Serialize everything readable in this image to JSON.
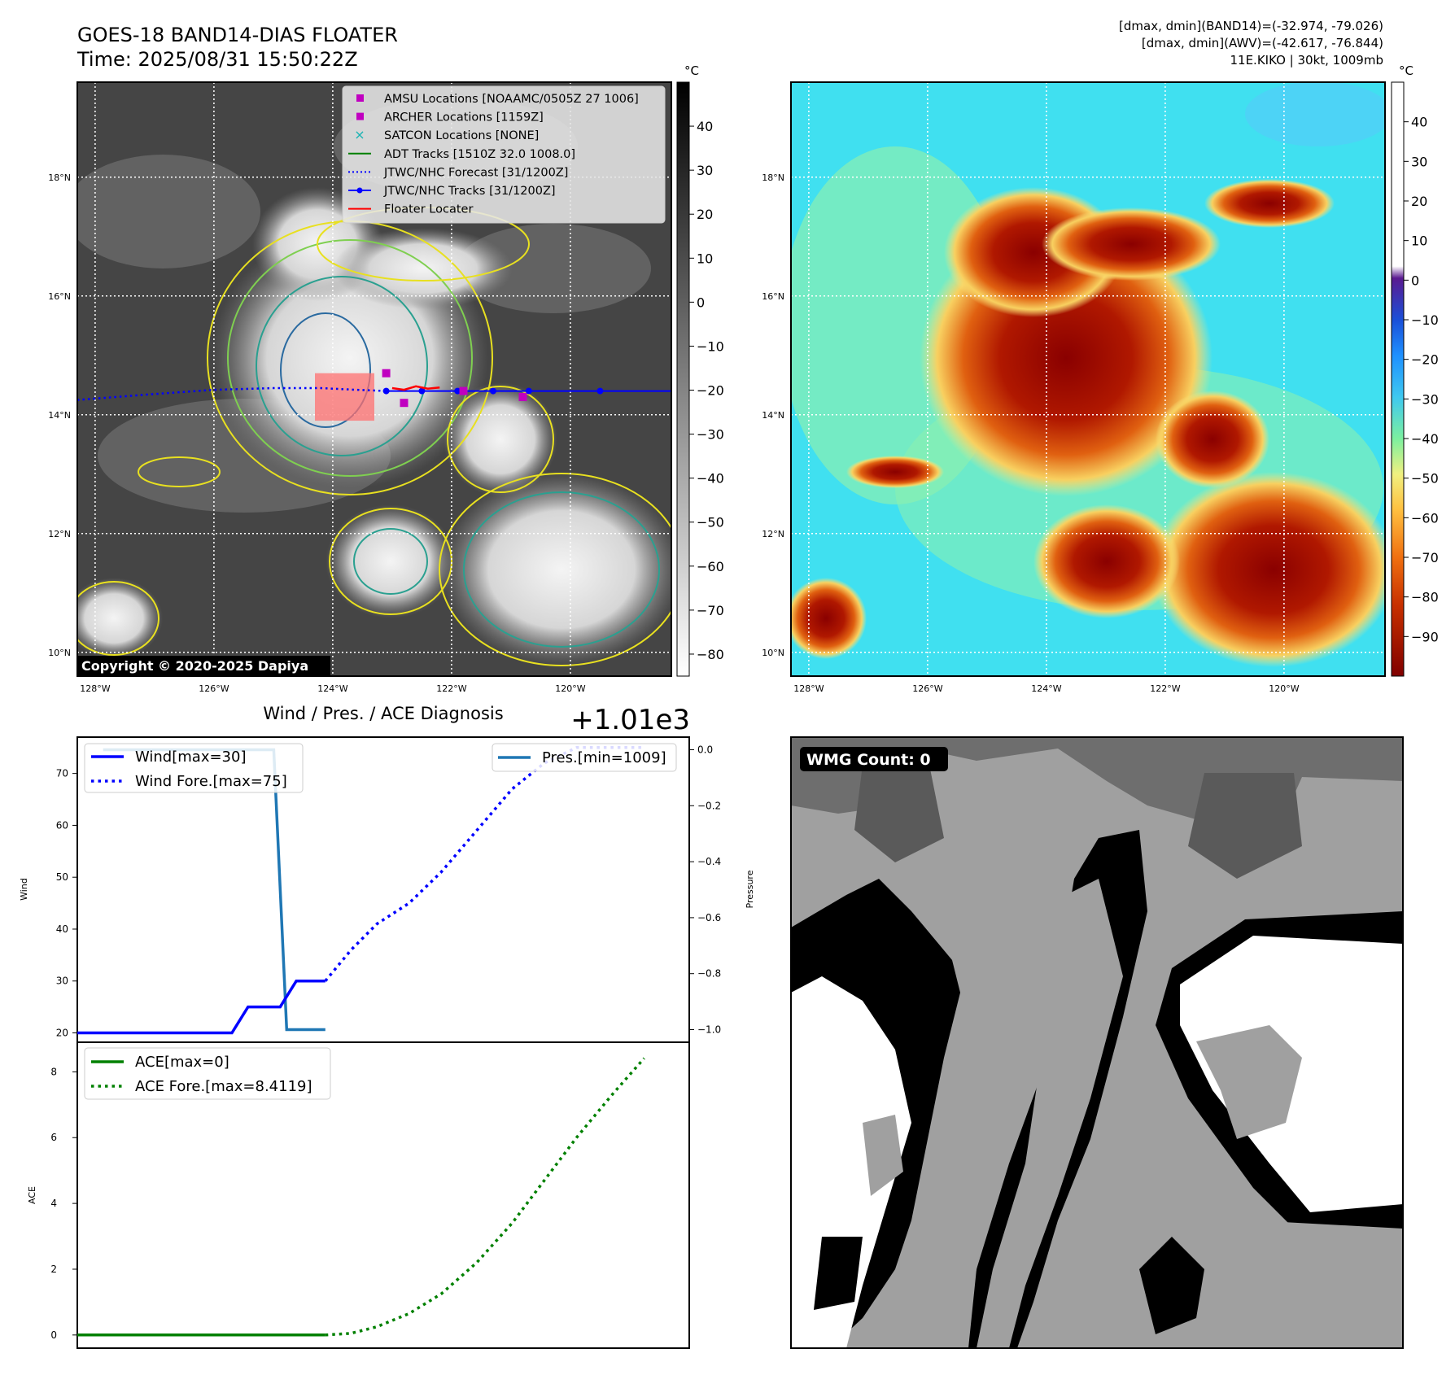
{
  "header": {
    "title_line1": "GOES-18 BAND14-DIAS FLOATER",
    "title_line2": "Time: 2025/08/31 15:50:22Z",
    "info_line1": "[dmax, dmin](BAND14)=(-32.974, -79.026)",
    "info_line2": "[dmax, dmin](AWV)=(-42.617, -76.844)",
    "info_line3": "11E.KIKO | 30kt, 1009mb"
  },
  "copyright": "Copyright © 2020-2025 Dapiya",
  "map_axes": {
    "lon_ticks": [
      -128,
      -126,
      -124,
      -122,
      -120
    ],
    "lon_labels": [
      "128°W",
      "126°W",
      "124°W",
      "122°W",
      "120°W"
    ],
    "lat_ticks": [
      10,
      12,
      14,
      16,
      18
    ],
    "lat_labels": [
      "10°N",
      "12°N",
      "14°N",
      "16°N",
      "18°N"
    ],
    "lon_range": [
      -128.3,
      -118.3
    ],
    "lat_range": [
      9.6,
      19.6
    ]
  },
  "legend_entries": [
    {
      "label": "AMSU Locations [NOAAMC/0505Z 27 1006]",
      "color": "#c000c0",
      "style": "square"
    },
    {
      "label": "ARCHER Locations [1159Z]",
      "color": "#c000c0",
      "style": "square"
    },
    {
      "label": "SATCON Locations [NONE]",
      "color": "#17b3b3",
      "style": "x"
    },
    {
      "label": "ADT Tracks [1510Z 32.0 1008.0]",
      "color": "#008000",
      "style": "line"
    },
    {
      "label": "JTWC/NHC Forecast [31/1200Z]",
      "color": "#0000ff",
      "style": "dotted"
    },
    {
      "label": "JTWC/NHC Tracks [31/1200Z]",
      "color": "#0000ff",
      "style": "line-marker"
    },
    {
      "label": "Floater Locater",
      "color": "#ff0000",
      "style": "line"
    }
  ],
  "colorbar_gray": {
    "unit": "°C",
    "ticks": [
      40,
      30,
      20,
      10,
      0,
      -10,
      -20,
      -30,
      -40,
      -50,
      -60,
      -70,
      -80
    ],
    "labels": [
      "40",
      "30",
      "20",
      "10",
      "0",
      "−10",
      "−20",
      "−30",
      "−40",
      "−50",
      "−60",
      "−70",
      "−80"
    ],
    "range": [
      -85,
      50
    ]
  },
  "colorbar_color": {
    "unit": "°C",
    "ticks": [
      40,
      30,
      20,
      10,
      0,
      -10,
      -20,
      -30,
      -40,
      -50,
      -60,
      -70,
      -80,
      -90
    ],
    "labels": [
      "40",
      "30",
      "20",
      "10",
      "0",
      "−10",
      "−20",
      "−30",
      "−40",
      "−50",
      "−60",
      "−70",
      "−80",
      "−90"
    ],
    "range": [
      -100,
      50
    ]
  },
  "tracks": {
    "forecast_lon": [
      -128.3,
      -127,
      -126,
      -125,
      -124.2,
      -123.6,
      -123.1
    ],
    "forecast_lat": [
      14.25,
      14.35,
      14.42,
      14.45,
      14.45,
      14.42,
      14.4
    ],
    "history_lon": [
      -118.3,
      -118.9,
      -119.5,
      -120.1,
      -120.7,
      -121.3,
      -121.9,
      -122.5,
      -123.1
    ],
    "history_lat": [
      14.4,
      14.4,
      14.4,
      14.4,
      14.4,
      14.4,
      14.4,
      14.4,
      14.4
    ],
    "history_marker_lon": [
      -119.5,
      -120.7,
      -121.3,
      -121.9,
      -122.5,
      -123.1
    ],
    "floater_lon": [
      -123.0,
      -122.8,
      -122.6,
      -122.4,
      -122.2
    ],
    "floater_lat": [
      14.45,
      14.42,
      14.48,
      14.44,
      14.46
    ],
    "amsu": [
      [
        -123.1,
        14.7
      ],
      [
        -122.8,
        14.2
      ],
      [
        -121.8,
        14.4
      ],
      [
        -120.8,
        14.3
      ]
    ],
    "floater_box": {
      "lon": [
        -124.3,
        -123.3
      ],
      "lat": [
        13.9,
        14.7
      ]
    }
  },
  "chart_data": [
    {
      "type": "line",
      "title": "Wind / Pres. / ACE Diagnosis",
      "offset_text": "+1.01e3",
      "ylabel": "Wind",
      "ylabel_right": "Pressure",
      "x": [
        0,
        1,
        2,
        3,
        4,
        5,
        6,
        7,
        8,
        9,
        10,
        11,
        12,
        13,
        14,
        15,
        16,
        17,
        18
      ],
      "ylim": [
        18.2,
        77
      ],
      "yticks": [
        20,
        30,
        40,
        50,
        60,
        70
      ],
      "ylim_right": [
        -1.045,
        0.045
      ],
      "yticks_right": [
        0.0,
        -0.2,
        -0.4,
        -0.6,
        -0.8,
        -1.0
      ],
      "ytick_labels_right": [
        "0.0",
        "−0.2",
        "−0.4",
        "−0.6",
        "−0.8",
        "−1.0"
      ],
      "series": [
        {
          "name": "Wind[max=30]",
          "x": [
            0,
            4.8,
            5.3,
            6.3,
            6.8,
            7.7
          ],
          "values": [
            20,
            20,
            25,
            25,
            30,
            30
          ],
          "color": "#0000ff",
          "style": "solid"
        },
        {
          "name": "Wind Fore.[max=75]",
          "x": [
            7.7,
            8.5,
            9.3,
            10.3,
            11.3,
            12.4,
            13.5,
            14.5,
            15.5,
            16.6,
            17.6
          ],
          "values": [
            30,
            36,
            41,
            45,
            51,
            59,
            67,
            72,
            75,
            75,
            75
          ],
          "color": "#0000ff",
          "style": "dotted"
        },
        {
          "name": "Pres.[min=1009]",
          "axis": "right",
          "x": [
            0.8,
            6.1,
            6.5,
            7.7
          ],
          "values": [
            0.0,
            0.0,
            -1.0,
            -1.0
          ],
          "color": "#1f77b4",
          "style": "solid"
        }
      ],
      "legend_wind": [
        "Wind[max=30]",
        "Wind Fore.[max=75]"
      ],
      "legend_pres": [
        "Pres.[min=1009]"
      ]
    },
    {
      "type": "line",
      "ylabel": "ACE",
      "x": [
        0,
        1,
        2,
        3,
        4,
        5,
        6,
        7,
        8,
        9,
        10,
        11,
        12,
        13,
        14,
        15,
        16,
        17,
        18
      ],
      "ylim": [
        -0.4,
        8.9
      ],
      "yticks": [
        0,
        2,
        4,
        6,
        8
      ],
      "series": [
        {
          "name": "ACE[max=0]",
          "x": [
            0,
            7.7
          ],
          "values": [
            0,
            0
          ],
          "color": "#008000",
          "style": "solid"
        },
        {
          "name": "ACE Fore.[max=8.4119]",
          "x": [
            7.7,
            8.5,
            9.3,
            10.3,
            11.3,
            12.4,
            13.5,
            14.5,
            15.5,
            16.6,
            17.6
          ],
          "values": [
            0,
            0.05,
            0.25,
            0.65,
            1.25,
            2.2,
            3.4,
            4.7,
            6.0,
            7.3,
            8.4119
          ],
          "color": "#008000",
          "style": "dotted"
        }
      ]
    }
  ],
  "wmg": {
    "label": "WMG Count: 0"
  }
}
